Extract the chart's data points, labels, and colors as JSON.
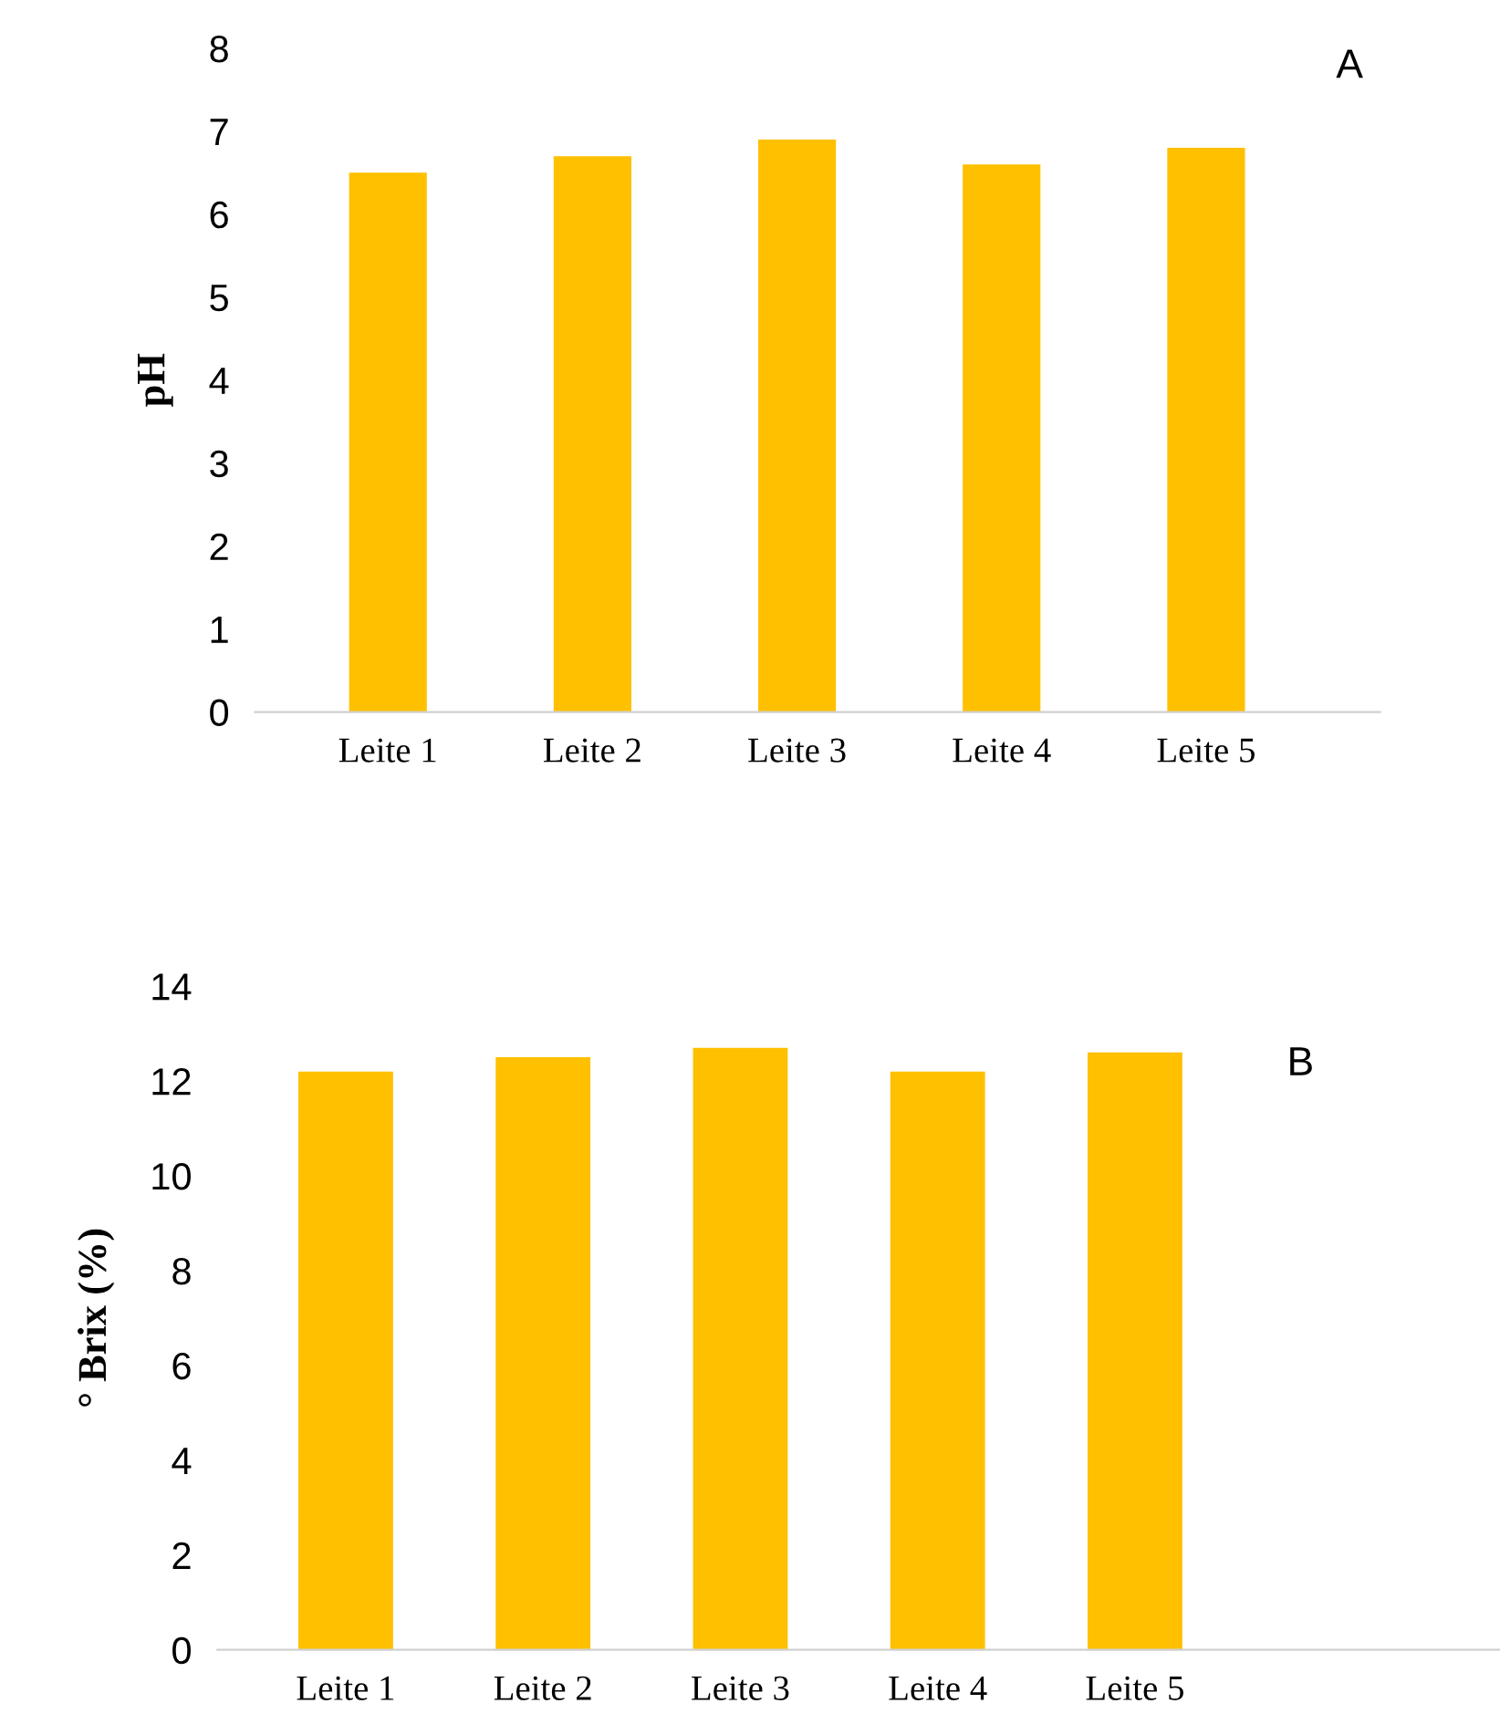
{
  "chart_data": [
    {
      "type": "bar",
      "categories": [
        "Leite 1",
        "Leite 2",
        "Leite 3",
        "Leite 4",
        "Leite 5"
      ],
      "values": [
        6.5,
        6.7,
        6.9,
        6.6,
        6.8
      ],
      "color": "#ffc000",
      "ylabel": "pH",
      "ylim": [
        0,
        8
      ],
      "yticks": [
        0,
        1,
        2,
        3,
        4,
        5,
        6,
        7,
        8
      ],
      "annotations": [
        "A"
      ],
      "grid": false
    },
    {
      "type": "bar",
      "categories": [
        "Leite 1",
        "Leite 2",
        "Leite 3",
        "Leite 4",
        "Leite 5"
      ],
      "values": [
        12.2,
        12.5,
        12.7,
        12.2,
        12.6
      ],
      "color": "#ffc000",
      "ylabel": "° Brix (%)",
      "ylim": [
        0,
        14
      ],
      "yticks": [
        0,
        2,
        4,
        6,
        8,
        10,
        12,
        14
      ],
      "annotations": [
        "B"
      ],
      "grid": false
    }
  ]
}
